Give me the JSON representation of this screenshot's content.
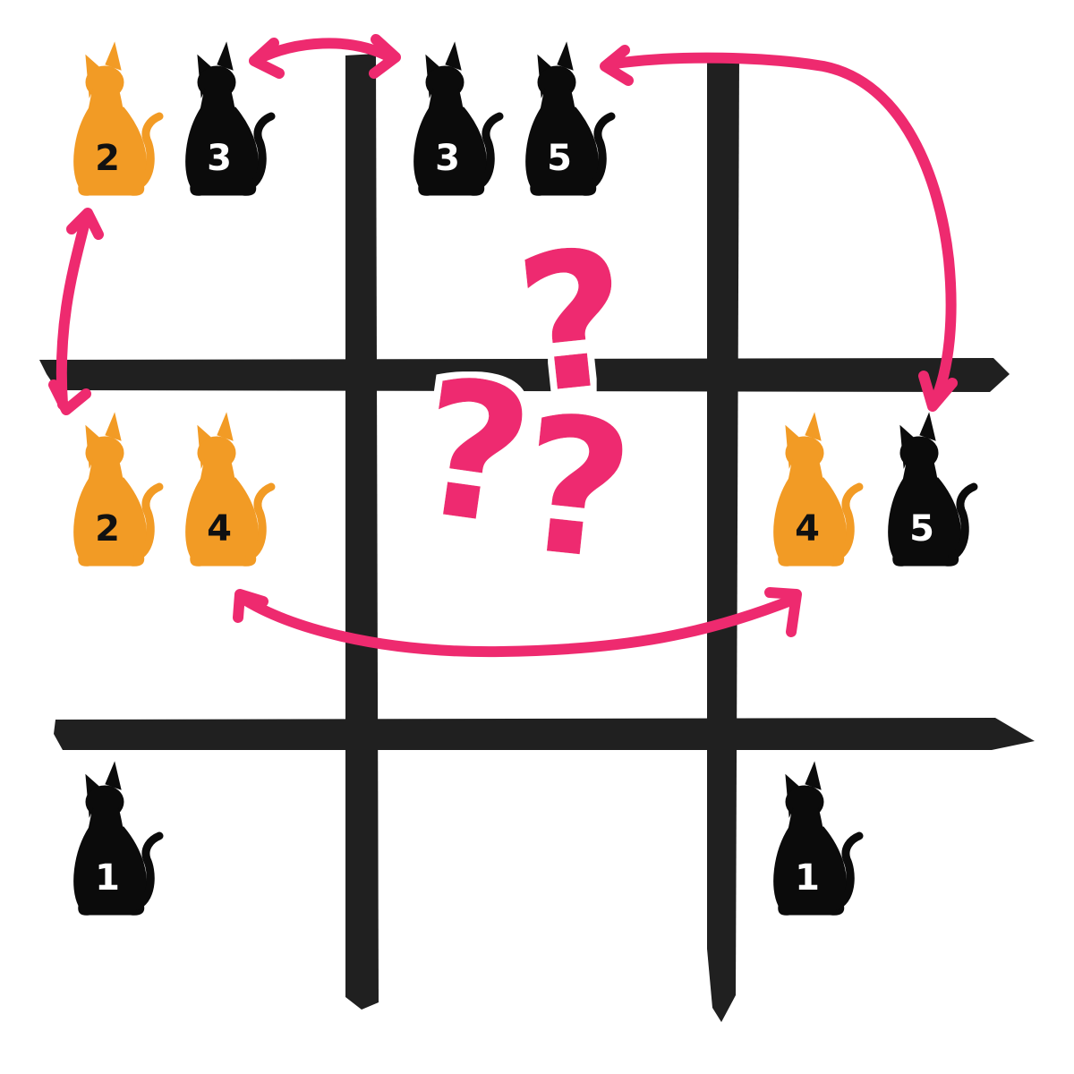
{
  "colors": {
    "background": "#ffffff",
    "grid": "#202020",
    "arrow": "#ee2a6f",
    "cat_orange": "#f29b25",
    "cat_black": "#0b0b0b",
    "num_on_orange": "#111111",
    "num_on_black": "#ffffff"
  },
  "cells": [
    {
      "id": "top-left",
      "cats": [
        {
          "color": "orange",
          "number": "2"
        },
        {
          "color": "black",
          "number": "3"
        }
      ]
    },
    {
      "id": "top-middle",
      "cats": [
        {
          "color": "black",
          "number": "3"
        },
        {
          "color": "black",
          "number": "5"
        }
      ]
    },
    {
      "id": "top-right",
      "cats": []
    },
    {
      "id": "middle-left",
      "cats": [
        {
          "color": "orange",
          "number": "2"
        },
        {
          "color": "orange",
          "number": "4"
        }
      ]
    },
    {
      "id": "center",
      "cats": [],
      "marks": [
        "?",
        "?",
        "?"
      ]
    },
    {
      "id": "middle-right",
      "cats": [
        {
          "color": "orange",
          "number": "4"
        },
        {
          "color": "black",
          "number": "5"
        }
      ]
    },
    {
      "id": "bottom-left",
      "cats": [
        {
          "color": "black",
          "number": "1"
        }
      ]
    },
    {
      "id": "bottom-middle",
      "cats": []
    },
    {
      "id": "bottom-right",
      "cats": [
        {
          "color": "black",
          "number": "1"
        }
      ]
    }
  ],
  "question_marks": [
    "?",
    "?",
    "?"
  ],
  "arrows": [
    {
      "from": "top-left",
      "to": "top-middle",
      "style": "double-headed"
    },
    {
      "from": "top-middle",
      "to": "middle-right",
      "style": "double-headed"
    },
    {
      "from": "top-left",
      "to": "middle-left",
      "style": "double-headed"
    },
    {
      "from": "middle-left",
      "to": "middle-right",
      "style": "double-headed"
    }
  ]
}
